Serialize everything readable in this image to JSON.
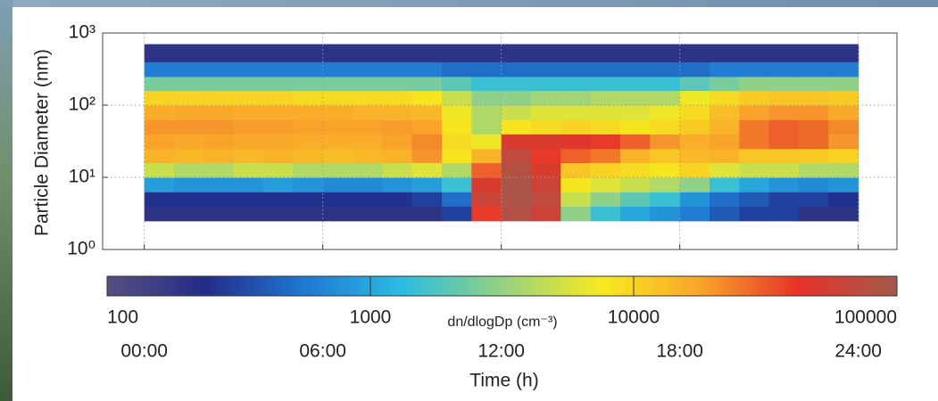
{
  "chart_data": {
    "type": "heatmap",
    "ylabel": "Particle Diameter (nm)",
    "xlabel": "Time (h)",
    "colorbar_label": "dn/dlogDp (cm⁻³)",
    "xlim": [
      -1.4,
      25.3
    ],
    "xticks": [
      {
        "value": 0,
        "label": "00:00"
      },
      {
        "value": 6,
        "label": "06:00"
      },
      {
        "value": 12,
        "label": "12:00"
      },
      {
        "value": 18,
        "label": "18:00"
      },
      {
        "value": 24,
        "label": "24:00"
      }
    ],
    "ylog": true,
    "ylim": [
      1,
      1000
    ],
    "yticks": [
      {
        "value": 1,
        "label": "10⁰"
      },
      {
        "value": 10,
        "label": "10¹"
      },
      {
        "value": 100,
        "label": "10²"
      },
      {
        "value": 1000,
        "label": "10³"
      }
    ],
    "grid": true,
    "clim": [
      100,
      100000
    ],
    "cticks": [
      100,
      1000,
      10000,
      100000
    ],
    "colormap": [
      "#564f7c",
      "#232c8a",
      "#1f78d2",
      "#2bbde0",
      "#96d283",
      "#f7ea1f",
      "#f9a52b",
      "#e63328",
      "#a35a4c"
    ],
    "x_edges": [
      0,
      1,
      2,
      3,
      4,
      5,
      6,
      7,
      8,
      9,
      10,
      11,
      12,
      13,
      14,
      15,
      16,
      17,
      18,
      19,
      20,
      21,
      22,
      23,
      24
    ],
    "y_edges": [
      2.5,
      4,
      6.3,
      10,
      16,
      25,
      40,
      63,
      100,
      160,
      250,
      400,
      700
    ],
    "values": [
      [
        200,
        200,
        200,
        200,
        200,
        200,
        200,
        200,
        200,
        200,
        300,
        40000,
        80000,
        60000,
        3000,
        1500,
        1000,
        800,
        600,
        400,
        300,
        300,
        200,
        200
      ],
      [
        250,
        250,
        250,
        250,
        250,
        250,
        250,
        250,
        250,
        300,
        500,
        60000,
        90000,
        70000,
        5000,
        3000,
        2000,
        1500,
        800,
        500,
        400,
        300,
        300,
        250
      ],
      [
        900,
        800,
        800,
        800,
        900,
        800,
        700,
        700,
        800,
        900,
        1500,
        50000,
        90000,
        60000,
        8000,
        6000,
        5000,
        4000,
        3000,
        1500,
        1000,
        800,
        700,
        800
      ],
      [
        5000,
        4000,
        4000,
        5000,
        5000,
        4000,
        4000,
        4000,
        5000,
        6000,
        4000,
        30000,
        80000,
        50000,
        12000,
        10000,
        9000,
        8000,
        10000,
        6000,
        5000,
        5000,
        4000,
        4000
      ],
      [
        15000,
        14000,
        15000,
        14000,
        15000,
        14000,
        13000,
        14000,
        15000,
        20000,
        8000,
        15000,
        70000,
        40000,
        30000,
        25000,
        15000,
        12000,
        14000,
        15000,
        12000,
        12000,
        11000,
        10000
      ],
      [
        18000,
        17000,
        18000,
        17000,
        17000,
        16000,
        16000,
        16000,
        18000,
        22000,
        9000,
        7000,
        50000,
        50000,
        45000,
        40000,
        30000,
        20000,
        16000,
        18000,
        25000,
        30000,
        28000,
        20000
      ],
      [
        20000,
        20000,
        20000,
        19000,
        19000,
        18000,
        18000,
        18000,
        19000,
        18000,
        8000,
        4000,
        8000,
        9000,
        10000,
        9000,
        8000,
        9000,
        11000,
        15000,
        25000,
        30000,
        28000,
        22000
      ],
      [
        16000,
        17000,
        17000,
        16000,
        16000,
        16000,
        16000,
        15000,
        15000,
        14000,
        7000,
        4000,
        5000,
        6000,
        6000,
        6000,
        6000,
        7000,
        9000,
        13000,
        18000,
        20000,
        20000,
        17000
      ],
      [
        10000,
        10000,
        10000,
        10000,
        10000,
        9000,
        9000,
        9000,
        9000,
        8000,
        5000,
        3000,
        3000,
        3500,
        3500,
        4000,
        4000,
        4000,
        7000,
        9000,
        11000,
        12000,
        12000,
        11000
      ],
      [
        2500,
        2500,
        2500,
        2500,
        2500,
        2500,
        2500,
        2500,
        2500,
        2500,
        2000,
        1500,
        1500,
        1500,
        1500,
        1500,
        1500,
        1500,
        2000,
        2500,
        3000,
        3000,
        3000,
        3000
      ],
      [
        600,
        600,
        600,
        600,
        600,
        600,
        600,
        600,
        600,
        600,
        500,
        500,
        500,
        500,
        500,
        500,
        500,
        500,
        500,
        600,
        600,
        600,
        600,
        600
      ],
      [
        200,
        200,
        200,
        200,
        200,
        200,
        200,
        200,
        200,
        200,
        200,
        200,
        200,
        200,
        200,
        200,
        200,
        200,
        200,
        200,
        200,
        200,
        200,
        200
      ]
    ]
  }
}
